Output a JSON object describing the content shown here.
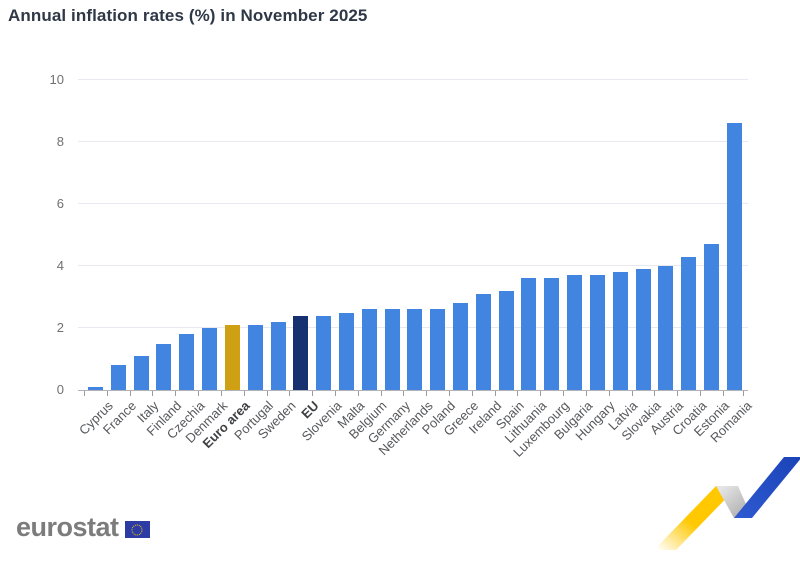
{
  "header": {
    "title": "Annual inflation rates (%) in November 2025"
  },
  "chart_data": {
    "type": "bar",
    "title": "Annual inflation rates (%) in November 2025",
    "xlabel": "",
    "ylabel": "",
    "ylim": [
      0,
      10
    ],
    "yticks": [
      0,
      2,
      4,
      6,
      8,
      10
    ],
    "grid": true,
    "legend_position": "none",
    "categories": [
      "Cyprus",
      "France",
      "Italy",
      "Finland",
      "Czechia",
      "Denmark",
      "Euro area",
      "Portugal",
      "Sweden",
      "EU",
      "Slovenia",
      "Malta",
      "Belgium",
      "Germany",
      "Netherlands",
      "Poland",
      "Greece",
      "Ireland",
      "Spain",
      "Lithuania",
      "Luxembourg",
      "Bulgaria",
      "Hungary",
      "Latvia",
      "Slovakia",
      "Austria",
      "Croatia",
      "Estonia",
      "Romania"
    ],
    "values": [
      0.1,
      0.8,
      1.1,
      1.5,
      1.8,
      2.0,
      2.1,
      2.1,
      2.2,
      2.4,
      2.4,
      2.5,
      2.6,
      2.6,
      2.6,
      2.6,
      2.8,
      3.1,
      3.2,
      3.6,
      3.6,
      3.7,
      3.7,
      3.8,
      3.9,
      4.0,
      4.3,
      4.7,
      8.6
    ],
    "bar_default_color": "#4285e0",
    "highlights": [
      {
        "category": "Euro area",
        "color": "#cfa013",
        "bold_label": true
      },
      {
        "category": "EU",
        "color": "#17306f",
        "bold_label": true
      }
    ]
  },
  "footer": {
    "logo_text": "eurostat",
    "flag_icon": "eu-flag-icon",
    "decoration_icon": "zigzag-trend-arrow-icon",
    "decoration_colors": {
      "yellow": "#ffc800",
      "gray": "#b5b5b5",
      "blue": "#2450c4"
    }
  }
}
